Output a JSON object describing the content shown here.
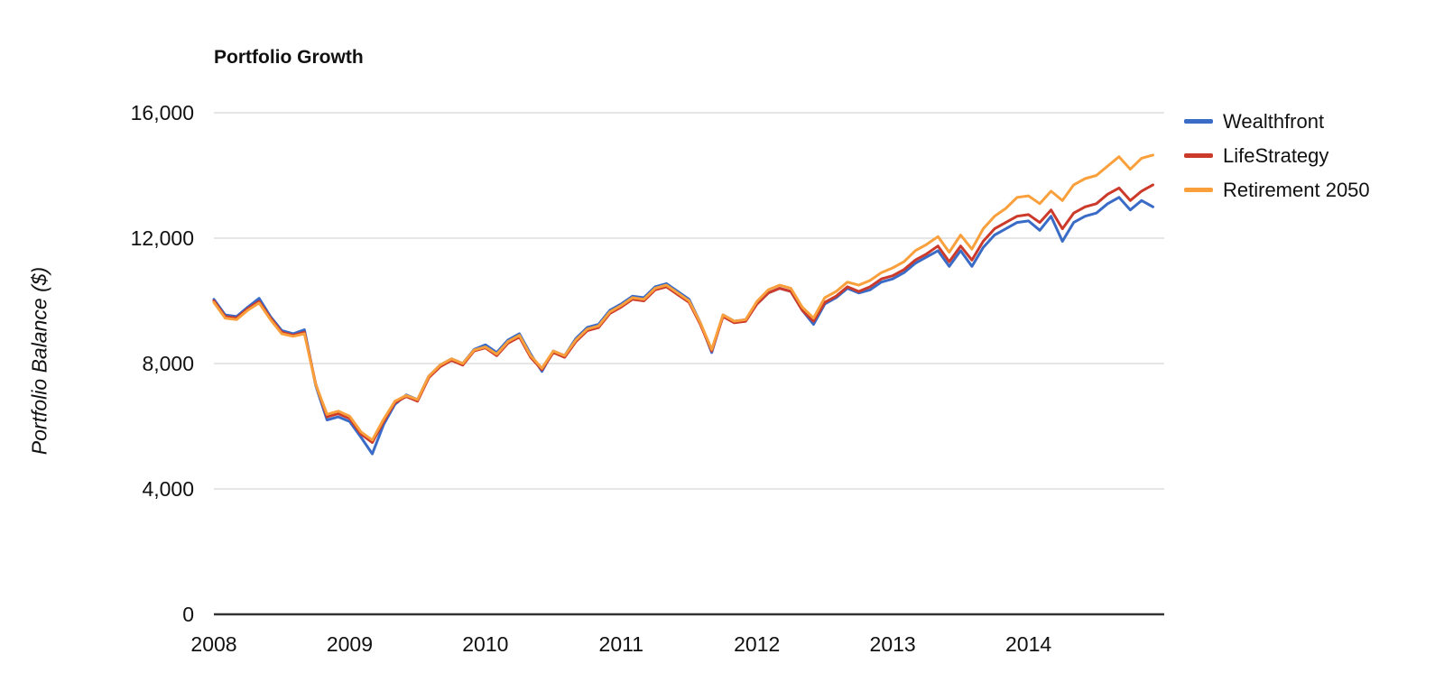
{
  "chart": {
    "title": "Portfolio Growth",
    "y_axis_label": "Portfolio Balance ($)"
  },
  "chart_data": {
    "type": "line",
    "title": "Portfolio Growth",
    "xlabel": "",
    "ylabel": "Portfolio Balance ($)",
    "x_frequency": "monthly",
    "x_start": "2008-01",
    "x_end": "2014-12",
    "x_tick_labels": [
      "2008",
      "2009",
      "2010",
      "2011",
      "2012",
      "2013",
      "2014"
    ],
    "y_tick_labels": [
      "0",
      "4,000",
      "8,000",
      "12,000",
      "16,000"
    ],
    "y_tick_values": [
      0,
      4000,
      8000,
      12000,
      16000
    ],
    "ylim": [
      0,
      16000
    ],
    "grid": true,
    "legend_position": "right",
    "grid_color": "#cccccc",
    "axis_color": "#333333",
    "series": [
      {
        "name": "Wealthfront",
        "color": "#3A6BC6",
        "values": [
          10050,
          9550,
          9500,
          9800,
          10080,
          9500,
          9050,
          8950,
          9080,
          7300,
          6200,
          6300,
          6150,
          5650,
          5120,
          6050,
          6700,
          7000,
          6850,
          7600,
          7950,
          8150,
          8000,
          8450,
          8600,
          8350,
          8750,
          8950,
          8300,
          7750,
          8400,
          8250,
          8800,
          9150,
          9250,
          9700,
          9900,
          10150,
          10100,
          10450,
          10550,
          10300,
          10050,
          9300,
          8350,
          9550,
          9350,
          9400,
          9900,
          10250,
          10400,
          10300,
          9700,
          9250,
          9900,
          10100,
          10400,
          10250,
          10350,
          10600,
          10700,
          10900,
          11200,
          11400,
          11600,
          11100,
          11600,
          11100,
          11700,
          12100,
          12300,
          12500,
          12550,
          12250,
          12700,
          11900,
          12500,
          12700,
          12800,
          13100,
          13300,
          12900,
          13200,
          13000
        ]
      },
      {
        "name": "LifeStrategy",
        "color": "#CB3A2A",
        "values": [
          10000,
          9500,
          9450,
          9750,
          9980,
          9450,
          9000,
          8900,
          9000,
          7350,
          6300,
          6400,
          6250,
          5750,
          5480,
          6150,
          6750,
          6950,
          6800,
          7550,
          7900,
          8100,
          7950,
          8400,
          8500,
          8250,
          8650,
          8850,
          8200,
          7800,
          8350,
          8200,
          8700,
          9050,
          9150,
          9600,
          9800,
          10050,
          10000,
          10350,
          10450,
          10200,
          9950,
          9250,
          8400,
          9500,
          9300,
          9350,
          9900,
          10250,
          10400,
          10300,
          9700,
          9350,
          9950,
          10150,
          10450,
          10300,
          10450,
          10700,
          10800,
          11000,
          11300,
          11500,
          11750,
          11250,
          11750,
          11300,
          11900,
          12300,
          12500,
          12700,
          12750,
          12500,
          12900,
          12300,
          12800,
          13000,
          13100,
          13400,
          13600,
          13200,
          13500,
          13700
        ]
      },
      {
        "name": "Retirement 2050",
        "color": "#F9A03C",
        "values": [
          9950,
          9450,
          9400,
          9700,
          9930,
          9400,
          8950,
          8870,
          8950,
          7330,
          6380,
          6480,
          6320,
          5820,
          5560,
          6220,
          6800,
          6980,
          6850,
          7600,
          7950,
          8150,
          8000,
          8430,
          8530,
          8300,
          8700,
          8900,
          8250,
          7850,
          8400,
          8250,
          8750,
          9100,
          9200,
          9650,
          9850,
          10100,
          10050,
          10400,
          10500,
          10250,
          10000,
          9300,
          8450,
          9550,
          9350,
          9400,
          9980,
          10350,
          10500,
          10400,
          9800,
          9450,
          10100,
          10300,
          10600,
          10500,
          10650,
          10900,
          11050,
          11250,
          11600,
          11800,
          12050,
          11550,
          12100,
          11650,
          12300,
          12700,
          12950,
          13300,
          13350,
          13100,
          13500,
          13200,
          13700,
          13900,
          14000,
          14300,
          14600,
          14200,
          14550,
          14650
        ]
      }
    ]
  }
}
